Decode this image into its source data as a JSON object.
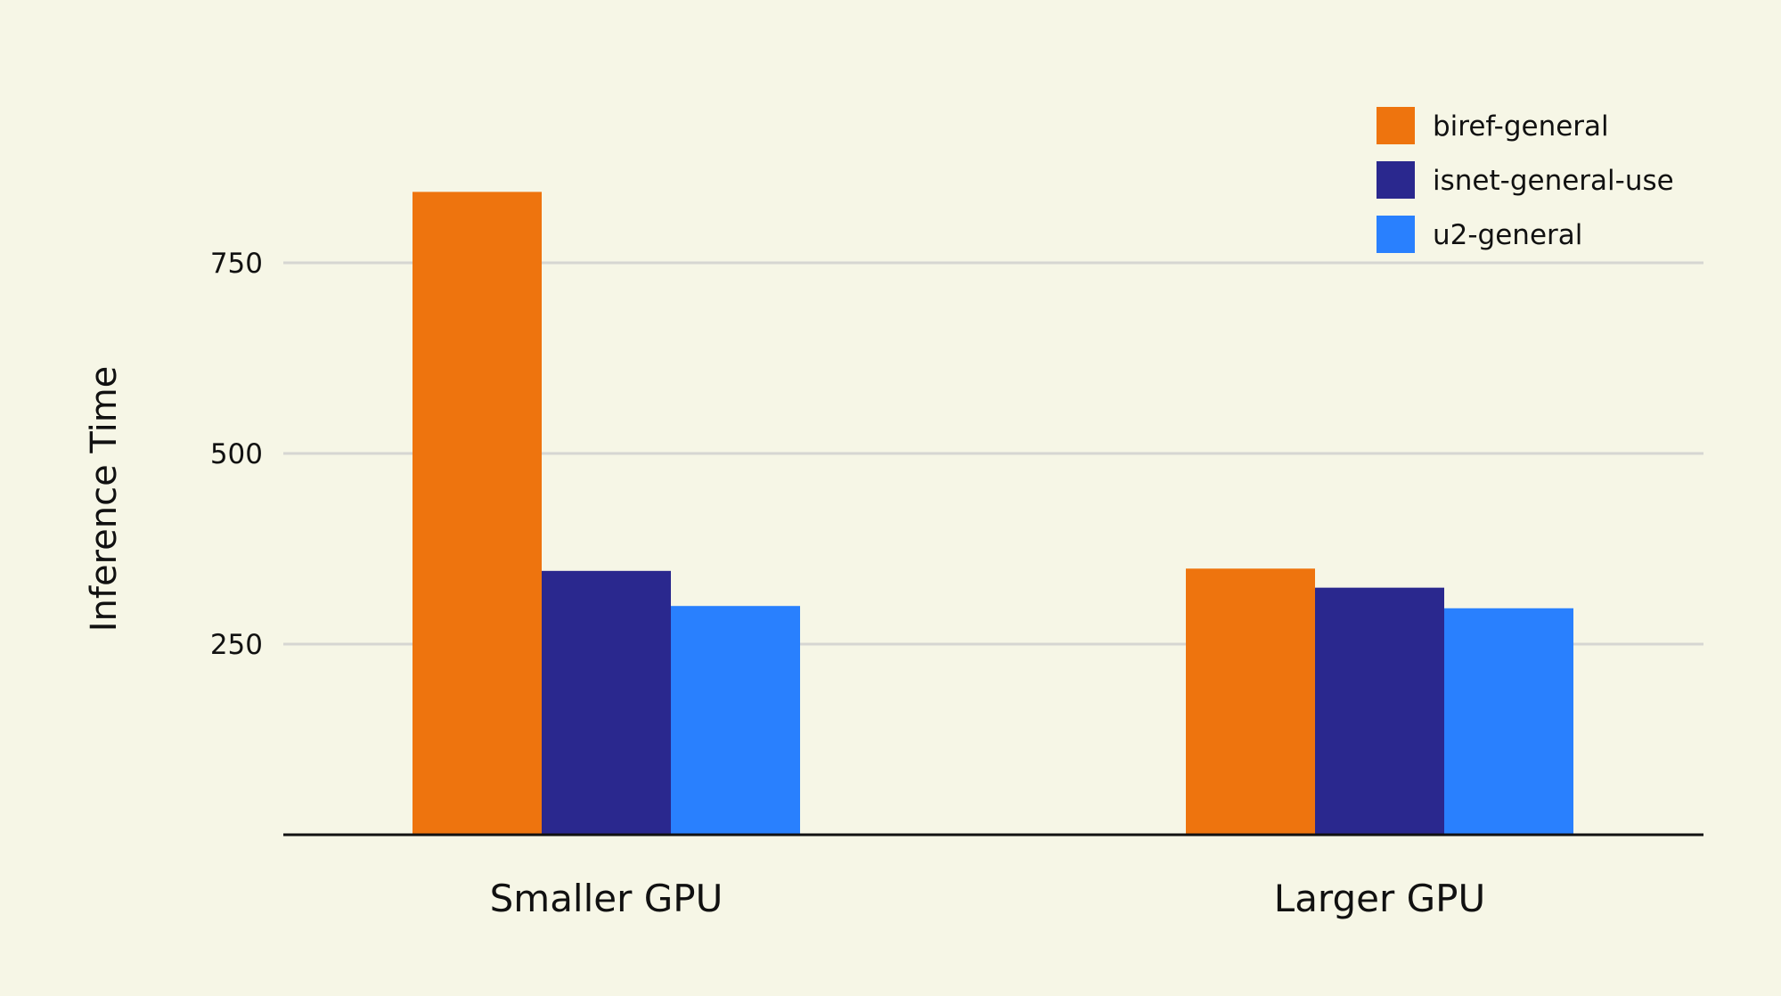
{
  "chart_data": {
    "type": "bar",
    "title": "",
    "xlabel": "",
    "ylabel": "Inference Time",
    "categories": [
      "Smaller GPU",
      "Larger GPU"
    ],
    "series": [
      {
        "name": "biref-general",
        "color": "#ee740e",
        "values": [
          843,
          349
        ]
      },
      {
        "name": "isnet-general-use",
        "color": "#2a288e",
        "values": [
          346,
          324
        ]
      },
      {
        "name": "u2-general",
        "color": "#2980fe",
        "values": [
          300,
          297
        ]
      }
    ],
    "yticks": [
      250,
      500,
      750
    ],
    "ylim": [
      0,
      1000
    ],
    "grid": true,
    "legend_position": "top-right"
  }
}
